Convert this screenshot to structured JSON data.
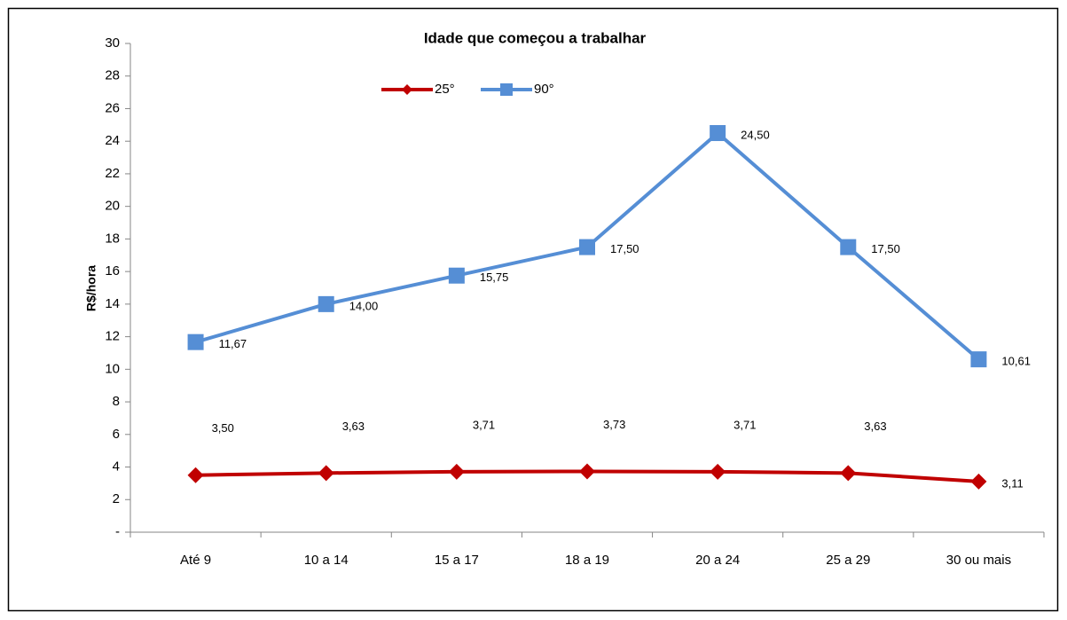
{
  "chart_data": {
    "type": "line",
    "title": "Idade que começou a trabalhar",
    "y_label": "R$/hora",
    "categories": [
      "Até 9",
      "10 a 14",
      "15 a  17",
      "18 a 19",
      "20 a 24",
      "25 a 29",
      "30 ou mais"
    ],
    "series": [
      {
        "name": "25°",
        "color": "#c00000",
        "marker": "diamond",
        "values": [
          3.5,
          3.63,
          3.71,
          3.73,
          3.71,
          3.63,
          3.11
        ],
        "value_labels": [
          "3,50",
          "3,63",
          "3,71",
          "3,73",
          "3,71",
          "3,63",
          "3,11"
        ]
      },
      {
        "name": "90°",
        "color": "#558ed5",
        "marker": "square",
        "values": [
          11.67,
          14,
          15.75,
          17.5,
          24.5,
          17.5,
          10.61
        ],
        "value_labels": [
          "11,67",
          "14,00",
          "15,75",
          "17,50",
          "24,50",
          "17,50",
          "10,61"
        ]
      }
    ],
    "ylim": [
      0,
      30
    ],
    "yticks": [
      {
        "value": 0,
        "label": "-"
      },
      2,
      4,
      6,
      8,
      10,
      12,
      14,
      16,
      18,
      20,
      22,
      24,
      26,
      28,
      30
    ],
    "grid": false,
    "legend": "top"
  }
}
